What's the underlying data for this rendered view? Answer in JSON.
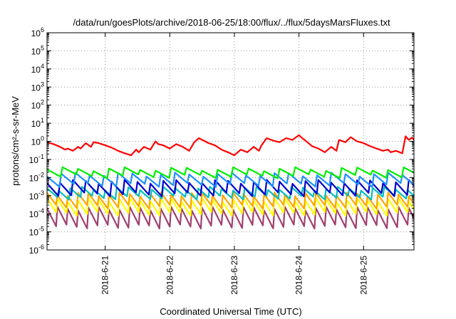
{
  "chart_data": {
    "type": "line",
    "title": "/data/run/goesPlots/archive/2018-06-25/18:00/flux/../flux/5daysMarsFluxes.txt",
    "xlabel": "Coordinated Universal Time (UTC)",
    "ylabel": "protons/cm²-s-sr-MeV",
    "yscale": "log",
    "ylim": [
      1e-06,
      1000000.0
    ],
    "xlim_days": [
      20.1,
      25.78
    ],
    "grid": true,
    "x_ticks": [
      {
        "day": 21,
        "label": "2018-6-21"
      },
      {
        "day": 22,
        "label": "2018-6-22"
      },
      {
        "day": 23,
        "label": "2018-6-23"
      },
      {
        "day": 24,
        "label": "2018-6-24"
      },
      {
        "day": 25,
        "label": "2018-6-25"
      }
    ],
    "y_ticks": [
      {
        "value": 1e-06,
        "base": "10",
        "exp": "-6"
      },
      {
        "value": 1e-05,
        "base": "10",
        "exp": "-5"
      },
      {
        "value": 0.0001,
        "base": "10",
        "exp": "-4"
      },
      {
        "value": 0.001,
        "base": "10",
        "exp": "-3"
      },
      {
        "value": 0.01,
        "base": "10",
        "exp": "-2"
      },
      {
        "value": 0.1,
        "base": "10",
        "exp": "-1"
      },
      {
        "value": 1,
        "base": "10",
        "exp": "0"
      },
      {
        "value": 10.0,
        "base": "10",
        "exp": "1"
      },
      {
        "value": 100.0,
        "base": "10",
        "exp": "2"
      },
      {
        "value": 1000.0,
        "base": "10",
        "exp": "3"
      },
      {
        "value": 10000.0,
        "base": "10",
        "exp": "4"
      },
      {
        "value": 100000.0,
        "base": "10",
        "exp": "5"
      },
      {
        "value": 1000000.0,
        "base": "10",
        "exp": "6"
      }
    ],
    "series": [
      {
        "color": "#ff0000",
        "x": [
          20.1,
          20.2,
          20.3,
          20.38,
          20.42,
          20.5,
          20.58,
          20.62,
          20.7,
          20.78,
          20.82,
          20.9,
          21.0,
          21.1,
          21.2,
          21.3,
          21.4,
          21.48,
          21.52,
          21.6,
          21.7,
          21.78,
          21.82,
          21.9,
          22.0,
          22.1,
          22.2,
          22.3,
          22.38,
          22.45,
          22.6,
          22.7,
          22.8,
          22.9,
          23.0,
          23.1,
          23.2,
          23.3,
          23.38,
          23.42,
          23.5,
          23.6,
          23.7,
          23.8,
          23.9,
          24.0,
          24.05,
          24.1,
          24.2,
          24.3,
          24.4,
          24.5,
          24.58,
          24.62,
          24.72,
          24.8,
          24.9,
          25.0,
          25.1,
          25.2,
          25.3,
          25.38,
          25.42,
          25.5,
          25.6,
          25.65,
          25.7,
          25.75,
          25.78
        ],
        "y": [
          0.9,
          0.7,
          0.5,
          0.35,
          0.4,
          0.3,
          0.5,
          0.4,
          0.8,
          0.5,
          0.9,
          0.8,
          0.6,
          0.45,
          0.3,
          0.22,
          0.17,
          0.35,
          0.25,
          0.5,
          0.35,
          1.0,
          0.7,
          0.6,
          0.4,
          0.7,
          0.5,
          0.3,
          0.9,
          1.5,
          0.8,
          0.6,
          0.35,
          0.25,
          0.17,
          0.35,
          0.25,
          0.5,
          0.3,
          0.6,
          1.5,
          1.1,
          0.9,
          1.5,
          1.2,
          2.2,
          1.5,
          1.1,
          0.55,
          0.4,
          0.25,
          0.5,
          0.3,
          1.2,
          0.9,
          1.7,
          1.0,
          0.8,
          0.55,
          0.4,
          0.3,
          0.35,
          0.25,
          0.3,
          0.22,
          1.9,
          1.2,
          1.6,
          1.2
        ]
      }
    ],
    "bands": [
      {
        "color": "#00ee00",
        "peak": 0.03,
        "trough": 0.012,
        "period": 0.24
      },
      {
        "color": "#1e90ff",
        "peak": 0.015,
        "trough": 0.004,
        "period": 0.22
      },
      {
        "color": "#0000cc",
        "peak": 0.006,
        "trough": 0.0012,
        "period": 0.2
      },
      {
        "color": "#00bfbf",
        "peak": 0.0025,
        "trough": 0.0008,
        "period": 0.18
      },
      {
        "color": "#ffa500",
        "peak": 0.0012,
        "trough": 0.00025,
        "period": 0.16
      },
      {
        "color": "#ffff00",
        "peak": 0.0006,
        "trough": 0.0001,
        "period": 0.16
      },
      {
        "color": "#a04070",
        "peak": 0.0002,
        "trough": 2e-05,
        "period": 0.16
      }
    ]
  }
}
